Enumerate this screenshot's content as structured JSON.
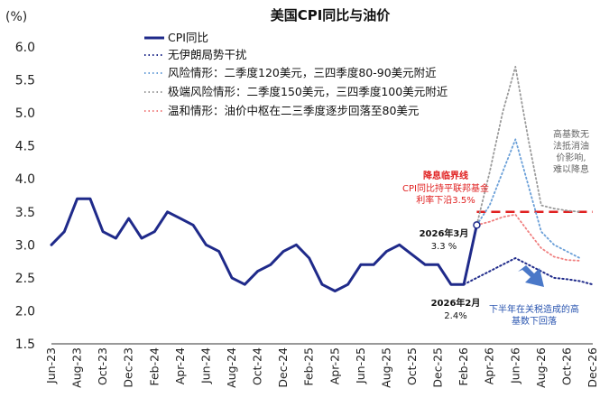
{
  "chart_data": {
    "type": "line",
    "title": "美国CPI同比与油价",
    "y_unit": "(%)",
    "ylim": [
      1.5,
      6.0
    ],
    "y_ticks": [
      "1.5",
      "2.0",
      "2.5",
      "3.0",
      "3.5",
      "4.0",
      "4.5",
      "5.0",
      "5.5",
      "6.0"
    ],
    "x_tick_labels": [
      "Jun-23",
      "Aug-23",
      "Oct-23",
      "Dec-23",
      "Feb-24",
      "Apr-24",
      "Jun-24",
      "Aug-24",
      "Oct-24",
      "Dec-24",
      "Feb-25",
      "Apr-25",
      "Jun-25",
      "Aug-25",
      "Oct-25",
      "Dec-25",
      "Feb-26",
      "Apr-26",
      "Jun-26",
      "Aug-26",
      "Oct-26",
      "Dec-26"
    ],
    "months": [
      "Jun-23",
      "Jul-23",
      "Aug-23",
      "Sep-23",
      "Oct-23",
      "Nov-23",
      "Dec-23",
      "Jan-24",
      "Feb-24",
      "Mar-24",
      "Apr-24",
      "May-24",
      "Jun-24",
      "Jul-24",
      "Aug-24",
      "Sep-24",
      "Oct-24",
      "Nov-24",
      "Dec-24",
      "Jan-25",
      "Feb-25",
      "Mar-25",
      "Apr-25",
      "May-25",
      "Jun-25",
      "Jul-25",
      "Aug-25",
      "Sep-25",
      "Oct-25",
      "Nov-25",
      "Dec-25",
      "Jan-26",
      "Feb-26",
      "Mar-26",
      "Apr-26",
      "May-26",
      "Jun-26",
      "Jul-26",
      "Aug-26",
      "Sep-26",
      "Oct-26",
      "Nov-26",
      "Dec-26"
    ],
    "series": [
      {
        "name": "CPI同比",
        "color": "#1f2a8a",
        "style": "solid",
        "start": "Jun-23",
        "values": [
          3.0,
          3.2,
          3.7,
          3.7,
          3.2,
          3.1,
          3.4,
          3.1,
          3.2,
          3.5,
          3.4,
          3.3,
          3.0,
          2.9,
          2.5,
          2.4,
          2.6,
          2.7,
          2.9,
          3.0,
          2.8,
          2.4,
          2.3,
          2.4,
          2.7,
          2.7,
          2.9,
          3.0,
          2.85,
          2.7,
          2.7,
          2.4,
          2.4,
          3.3
        ]
      },
      {
        "name": "无伊朗局势干扰",
        "color": "#1f2a8a",
        "style": "dotted",
        "start": "Feb-26",
        "values": [
          2.4,
          2.5,
          2.6,
          2.7,
          2.8,
          2.7,
          2.6,
          2.5,
          2.48,
          2.45,
          2.4
        ]
      },
      {
        "name": "风险情形：二季度120美元，三四季度80-90美元附近",
        "color": "#6a9fd8",
        "style": "dotted",
        "start": "Mar-26",
        "values": [
          3.3,
          3.6,
          4.1,
          4.6,
          3.9,
          3.2,
          3.0,
          2.9,
          2.8
        ]
      },
      {
        "name": "极端风险情形：二季度150美元，三四季度100美元附近",
        "color": "#9a9a9a",
        "style": "dotted",
        "start": "Mar-26",
        "values": [
          3.3,
          4.1,
          5.0,
          5.7,
          4.6,
          3.6,
          3.55,
          3.52,
          3.5
        ]
      },
      {
        "name": "温和情形：油价中枢在二三季度逐步回落至80美元",
        "color": "#f08080",
        "style": "dotted",
        "start": "Mar-26",
        "values": [
          3.3,
          3.35,
          3.42,
          3.46,
          3.2,
          2.95,
          2.82,
          2.77,
          2.76
        ]
      }
    ],
    "threshold": {
      "value": 3.5,
      "color": "#e02020",
      "from": "Mar-26",
      "to": "Dec-26"
    },
    "annotations": {
      "threshold_title": "降息临界线",
      "threshold_line1": "CPI同比持平联邦基金",
      "threshold_line2": "利率下沿3.5%",
      "mar_date": "2026年3月",
      "mar_value": "3.3 %",
      "feb_date": "2026年2月",
      "feb_value": "2.4%",
      "right_note": [
        "高基数无",
        "法抵消油",
        "价影响,",
        "难以降息"
      ],
      "arrow_note_line1": "下半年在关税造成的高",
      "arrow_note_line2": "基数下回落"
    },
    "legend_position": "top-center"
  }
}
